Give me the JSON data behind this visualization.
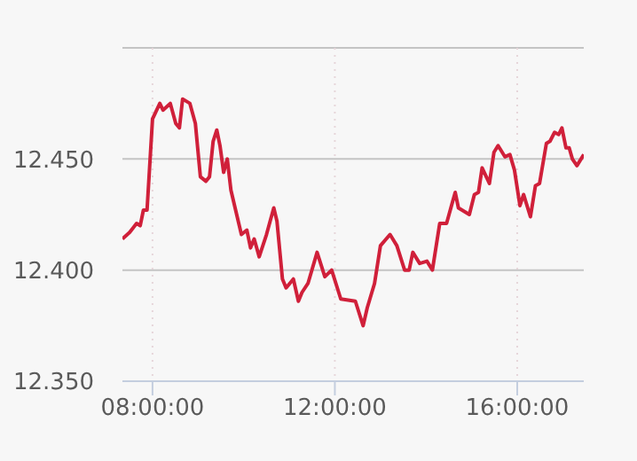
{
  "chart_data": {
    "type": "line",
    "x": [
      7.34,
      7.5,
      7.65,
      7.73,
      7.8,
      7.88,
      8.0,
      8.16,
      8.23,
      8.39,
      8.51,
      8.59,
      8.66,
      8.82,
      8.94,
      9.05,
      9.17,
      9.25,
      9.33,
      9.41,
      9.48,
      9.56,
      9.64,
      9.72,
      9.8,
      9.95,
      10.07,
      10.15,
      10.23,
      10.34,
      10.5,
      10.66,
      10.73,
      10.85,
      10.93,
      11.09,
      11.2,
      11.28,
      11.41,
      11.61,
      11.78,
      11.93,
      12.13,
      12.45,
      12.62,
      12.71,
      12.87,
      13.0,
      13.21,
      13.36,
      13.53,
      13.63,
      13.71,
      13.86,
      14.02,
      14.14,
      14.3,
      14.45,
      14.64,
      14.71,
      14.95,
      15.06,
      15.15,
      15.23,
      15.39,
      15.49,
      15.58,
      15.73,
      15.84,
      15.94,
      16.06,
      16.14,
      16.29,
      16.4,
      16.49,
      16.64,
      16.72,
      16.82,
      16.91,
      16.98,
      17.07,
      17.14,
      17.21,
      17.31,
      17.46
    ],
    "series": [
      {
        "color": "#d0203a",
        "values": [
          12.414,
          12.417,
          12.421,
          12.42,
          12.427,
          12.427,
          12.468,
          12.475,
          12.472,
          12.475,
          12.466,
          12.464,
          12.477,
          12.475,
          12.466,
          12.442,
          12.44,
          12.442,
          12.458,
          12.463,
          12.456,
          12.444,
          12.45,
          12.436,
          12.429,
          12.416,
          12.418,
          12.41,
          12.414,
          12.406,
          12.416,
          12.428,
          12.422,
          12.396,
          12.392,
          12.396,
          12.386,
          12.39,
          12.394,
          12.408,
          12.397,
          12.4,
          12.387,
          12.386,
          12.375,
          12.383,
          12.394,
          12.411,
          12.416,
          12.411,
          12.4,
          12.4,
          12.408,
          12.403,
          12.404,
          12.4,
          12.421,
          12.421,
          12.435,
          12.428,
          12.425,
          12.434,
          12.435,
          12.446,
          12.439,
          12.453,
          12.456,
          12.451,
          12.452,
          12.445,
          12.429,
          12.434,
          12.424,
          12.438,
          12.439,
          12.457,
          12.458,
          12.462,
          12.461,
          12.464,
          12.455,
          12.455,
          12.45,
          12.447,
          12.452
        ]
      }
    ],
    "xlim": [
      7.34,
      17.46
    ],
    "xticks": [
      {
        "value": 8,
        "label": "08:00:00"
      },
      {
        "value": 12,
        "label": "12:00:00"
      },
      {
        "value": 16,
        "label": "16:00:00"
      }
    ],
    "ylim": [
      12.35,
      12.5
    ],
    "yticks": [
      {
        "value": 12.35,
        "label": "12.350"
      },
      {
        "value": 12.4,
        "label": "12.400"
      },
      {
        "value": 12.45,
        "label": "12.450"
      },
      {
        "value": 12.5,
        "label": null
      }
    ],
    "grid": true,
    "marker": "none",
    "line_style": "solid"
  }
}
